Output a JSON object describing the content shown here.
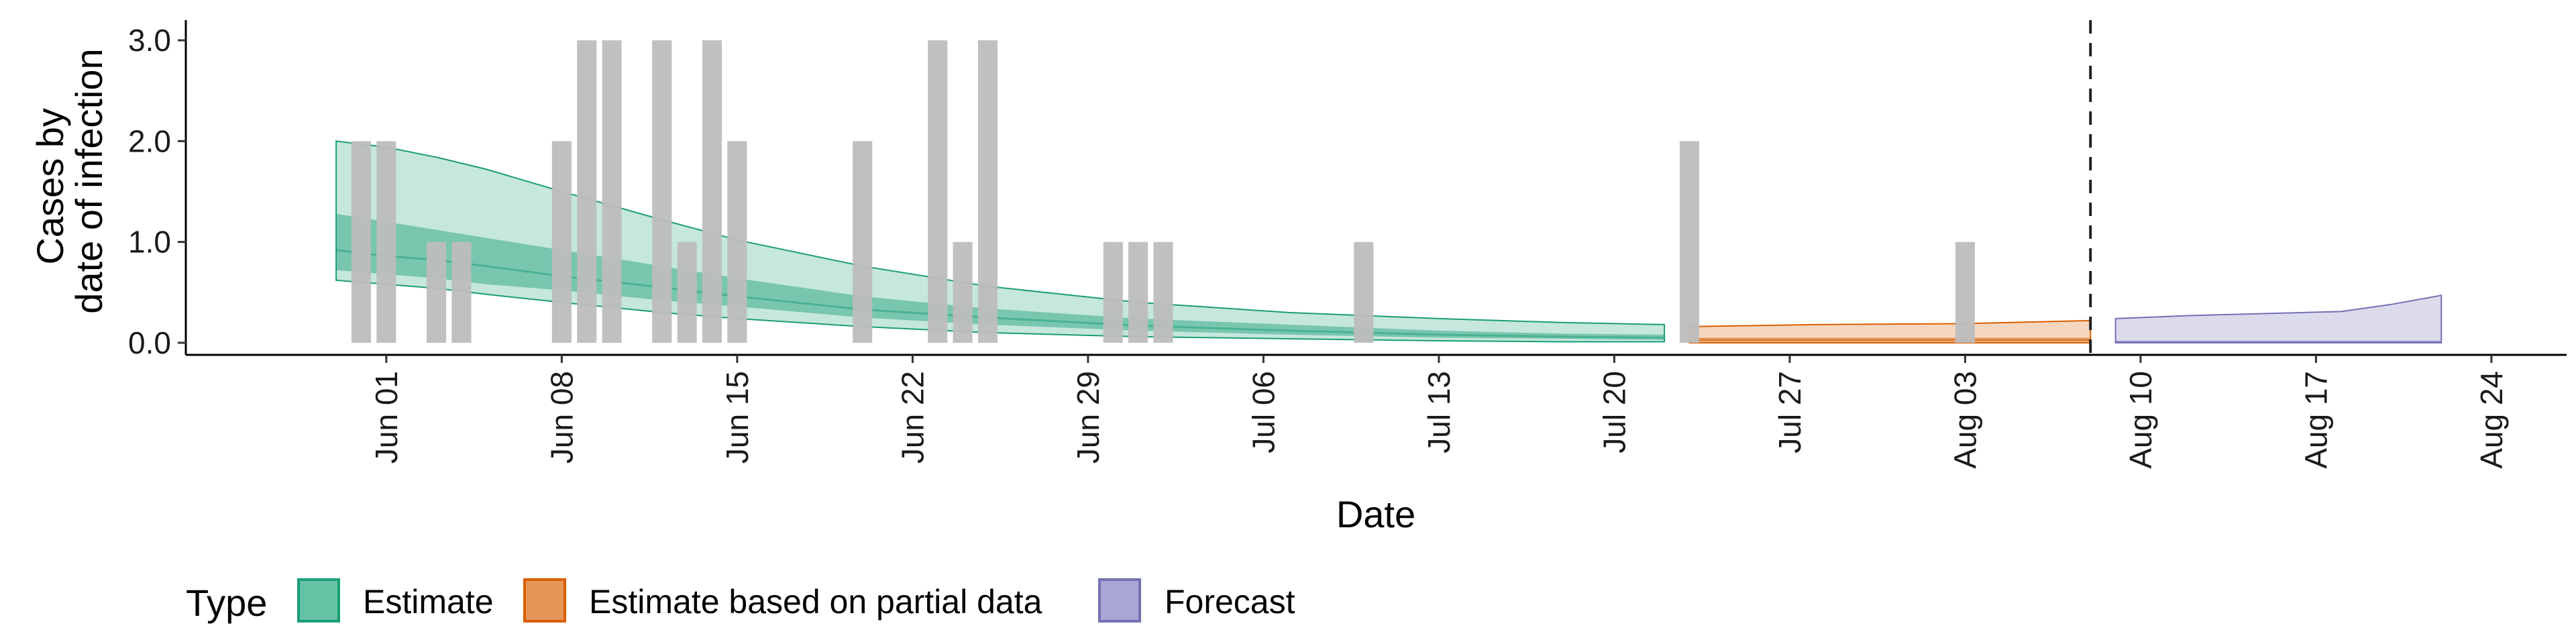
{
  "chart_data": {
    "type": "area",
    "xlabel": "Date",
    "ylabel_lines": [
      "Cases by",
      "date of infection"
    ],
    "y_ticks": [
      "0.0",
      "1.0",
      "2.0",
      "3.0"
    ],
    "ylim": [
      -0.12,
      3.2
    ],
    "xlim": [
      "2021-05-24",
      "2021-08-27"
    ],
    "x_ticks": [
      "Jun 01",
      "Jun 08",
      "Jun 15",
      "Jun 22",
      "Jun 29",
      "Jul 06",
      "Jul 13",
      "Jul 20",
      "Jul 27",
      "Aug 03",
      "Aug 10",
      "Aug 17",
      "Aug 24"
    ],
    "x_tick_dates": [
      "2021-06-01",
      "2021-06-08",
      "2021-06-15",
      "2021-06-22",
      "2021-06-29",
      "2021-07-06",
      "2021-07-13",
      "2021-07-20",
      "2021-07-27",
      "2021-08-03",
      "2021-08-10",
      "2021-08-17",
      "2021-08-24"
    ],
    "grid": false,
    "reference_line_date": "2021-08-08",
    "reported_cases": {
      "color": "#bdbdbd",
      "dates": [
        "2021-05-31",
        "2021-06-01",
        "2021-06-03",
        "2021-06-04",
        "2021-06-08",
        "2021-06-09",
        "2021-06-10",
        "2021-06-12",
        "2021-06-13",
        "2021-06-14",
        "2021-06-15",
        "2021-06-20",
        "2021-06-23",
        "2021-06-24",
        "2021-06-25",
        "2021-06-30",
        "2021-07-01",
        "2021-07-02",
        "2021-07-10",
        "2021-07-23",
        "2021-08-03"
      ],
      "values": [
        2,
        2,
        1,
        1,
        2,
        3,
        3,
        3,
        1,
        3,
        2,
        2,
        3,
        1,
        3,
        1,
        1,
        1,
        1,
        2,
        1
      ]
    },
    "series": [
      {
        "name": "Estimate",
        "color": "#1b9e77",
        "dates": [
          "2021-05-30",
          "2021-06-01",
          "2021-06-03",
          "2021-06-05",
          "2021-06-08",
          "2021-06-12",
          "2021-06-15",
          "2021-06-20",
          "2021-06-25",
          "2021-07-01",
          "2021-07-07",
          "2021-07-13",
          "2021-07-18",
          "2021-07-22"
        ],
        "median": [
          0.92,
          0.86,
          0.82,
          0.76,
          0.66,
          0.55,
          0.46,
          0.33,
          0.25,
          0.17,
          0.12,
          0.08,
          0.06,
          0.05
        ],
        "lower50": [
          0.72,
          0.68,
          0.64,
          0.58,
          0.52,
          0.42,
          0.36,
          0.25,
          0.18,
          0.12,
          0.08,
          0.05,
          0.04,
          0.03
        ],
        "upper50": [
          1.28,
          1.2,
          1.12,
          1.04,
          0.92,
          0.76,
          0.64,
          0.46,
          0.34,
          0.24,
          0.18,
          0.12,
          0.09,
          0.08
        ],
        "lower90": [
          0.62,
          0.58,
          0.54,
          0.48,
          0.4,
          0.3,
          0.24,
          0.16,
          0.1,
          0.06,
          0.04,
          0.02,
          0.01,
          0.01
        ],
        "upper90": [
          2.0,
          1.94,
          1.84,
          1.72,
          1.5,
          1.22,
          1.02,
          0.76,
          0.56,
          0.4,
          0.3,
          0.24,
          0.2,
          0.18
        ]
      },
      {
        "name": "Estimate based on partial data",
        "color": "#d95f02",
        "dates": [
          "2021-07-23",
          "2021-07-28",
          "2021-08-03",
          "2021-08-08"
        ],
        "median": [
          0.03,
          0.03,
          0.03,
          0.03
        ],
        "lower50": [
          0.01,
          0.01,
          0.01,
          0.01
        ],
        "upper50": [
          0.05,
          0.05,
          0.05,
          0.05
        ],
        "lower90": [
          0.0,
          0.0,
          0.0,
          0.0
        ],
        "upper90": [
          0.16,
          0.18,
          0.19,
          0.22
        ]
      },
      {
        "name": "Forecast",
        "color": "#7570b3",
        "dates": [
          "2021-08-09",
          "2021-08-12",
          "2021-08-15",
          "2021-08-18",
          "2021-08-20",
          "2021-08-22"
        ],
        "median": [
          0.01,
          0.01,
          0.01,
          0.01,
          0.01,
          0.01
        ],
        "lower50": [
          0.0,
          0.0,
          0.0,
          0.0,
          0.0,
          0.0
        ],
        "upper50": [
          0.02,
          0.02,
          0.02,
          0.02,
          0.02,
          0.02
        ],
        "lower90": [
          0.0,
          0.0,
          0.0,
          0.0,
          0.0,
          0.0
        ],
        "upper90": [
          0.24,
          0.27,
          0.29,
          0.31,
          0.38,
          0.47
        ]
      }
    ],
    "legend": {
      "title": "Type",
      "position": "bottom",
      "entries": [
        {
          "label": "Estimate",
          "fill": "#66c2a5",
          "stroke": "#1b9e77"
        },
        {
          "label": "Estimate based on partial data",
          "fill": "#e8955a",
          "stroke": "#d95f02"
        },
        {
          "label": "Forecast",
          "fill": "#a9a6d6",
          "stroke": "#7570b3"
        }
      ]
    }
  }
}
